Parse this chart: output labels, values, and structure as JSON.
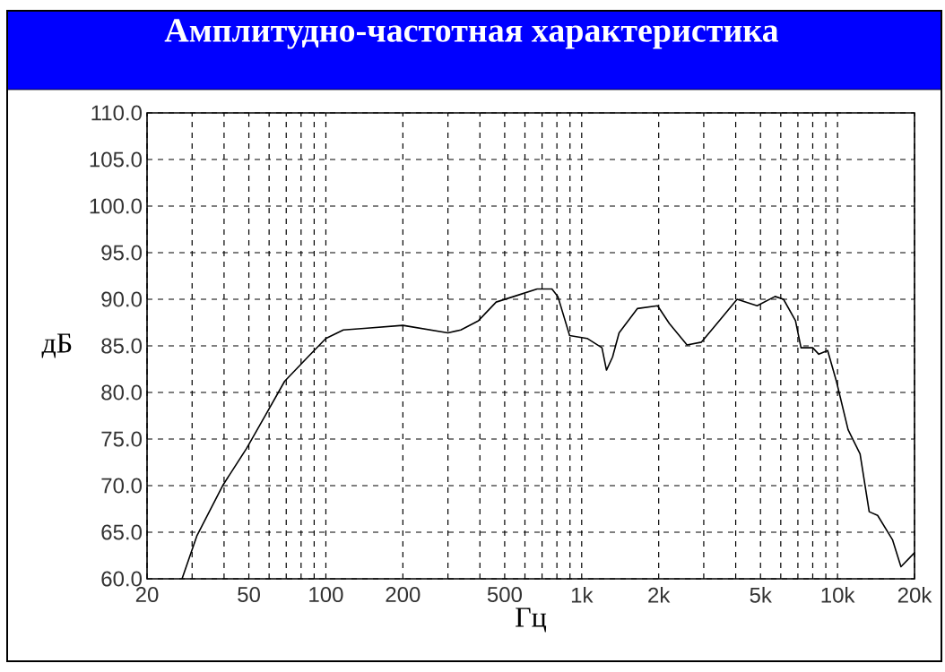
{
  "chart_data": {
    "type": "line",
    "title": "Амплитудно-частотная характеристика",
    "xlabel": "Гц",
    "ylabel": "дБ",
    "log": "x",
    "grid": true,
    "xlim": [
      20,
      20000
    ],
    "ylim": [
      60,
      110
    ],
    "xticks": [
      20,
      {
        "value": 30,
        "label": null
      },
      {
        "value": 40,
        "label": null
      },
      50,
      {
        "value": 60,
        "label": null
      },
      {
        "value": 70,
        "label": null
      },
      {
        "value": 80,
        "label": null
      },
      {
        "value": 90,
        "label": null
      },
      100,
      200,
      {
        "value": 300,
        "label": null
      },
      {
        "value": 400,
        "label": null
      },
      500,
      {
        "value": 600,
        "label": null
      },
      {
        "value": 700,
        "label": null
      },
      {
        "value": 800,
        "label": null
      },
      {
        "value": 900,
        "label": null
      },
      {
        "value": 1000,
        "label": "1k"
      },
      {
        "value": 2000,
        "label": "2k"
      },
      {
        "value": 3000,
        "label": null
      },
      {
        "value": 4000,
        "label": null
      },
      {
        "value": 5000,
        "label": "5k"
      },
      {
        "value": 6000,
        "label": null
      },
      {
        "value": 7000,
        "label": null
      },
      {
        "value": 8000,
        "label": null
      },
      {
        "value": 9000,
        "label": null
      },
      {
        "value": 10000,
        "label": "10k"
      },
      {
        "value": 20000,
        "label": "20k"
      }
    ],
    "yticks": [
      {
        "value": 60,
        "label": "60.0"
      },
      {
        "value": 65,
        "label": "65.0"
      },
      {
        "value": 70,
        "label": "70.0"
      },
      {
        "value": 75,
        "label": "75.0"
      },
      {
        "value": 80,
        "label": "80.0"
      },
      {
        "value": 85,
        "label": "85.0"
      },
      {
        "value": 90,
        "label": "90.0"
      },
      {
        "value": 95,
        "label": "95.0"
      },
      {
        "value": 100,
        "label": "100.0"
      },
      {
        "value": 105,
        "label": "105.0"
      },
      {
        "value": 110,
        "label": "110.0"
      }
    ],
    "x": [
      27.4,
      31.3,
      39.7,
      49,
      59,
      69,
      85,
      100,
      117,
      145,
      200,
      300,
      337,
      395,
      463,
      543,
      670,
      765,
      807,
      897,
      1050,
      1200,
      1250,
      1320,
      1400,
      1650,
      1980,
      2200,
      2580,
      2940,
      3450,
      4050,
      4850,
      5700,
      6150,
      6850,
      7200,
      8000,
      8450,
      9150,
      9900,
      11000,
      12250,
      13300,
      14350,
      16400,
      17700,
      19200,
      20000
    ],
    "series": [
      {
        "color": "#000000",
        "values": [
          60,
          64.6,
          70.1,
          74,
          77.9,
          81.2,
          83.8,
          85.8,
          86.7,
          86.9,
          87.2,
          86.4,
          86.7,
          87.7,
          89.7,
          90.3,
          91.1,
          91.1,
          90.3,
          86.1,
          85.8,
          84.8,
          82.4,
          83.8,
          86.4,
          89,
          89.3,
          87.4,
          85.1,
          85.4,
          87.7,
          90,
          89.3,
          90.3,
          90,
          87.7,
          84.8,
          84.8,
          84.1,
          84.5,
          81.2,
          76,
          73.4,
          67.2,
          66.8,
          64.2,
          61.3,
          62.3,
          62.8
        ]
      }
    ]
  }
}
